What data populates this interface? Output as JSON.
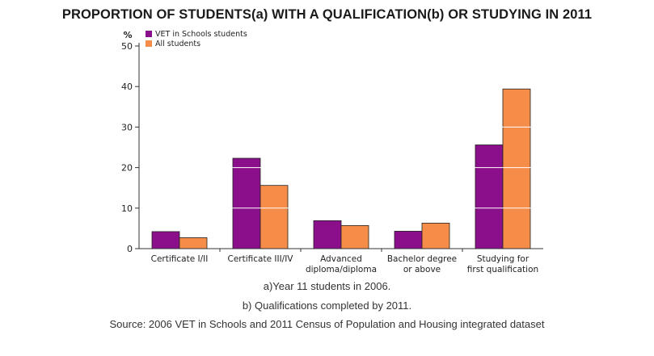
{
  "title": "PROPORTION OF STUDENTS(a) WITH A QUALIFICATION(b) OR STUDYING IN 2011",
  "notes": {
    "a": "a)Year 11 students in 2006.",
    "b": "b) Qualifications completed by 2011.",
    "source": "Source: 2006 VET in Schools and 2011 Census of Population and Housing integrated dataset"
  },
  "colors": {
    "vet": "#8b0f8b",
    "all": "#f58c48",
    "grid": "#ffffff",
    "axis": "#333333"
  },
  "chart_data": {
    "type": "bar",
    "title": "PROPORTION OF STUDENTS(a) WITH A QUALIFICATION(b) OR STUDYING IN 2011",
    "ylabel": "%",
    "xlabel": "",
    "ylim": [
      0,
      50
    ],
    "yticks": [
      0,
      10,
      20,
      30,
      40,
      50
    ],
    "grid": true,
    "legend_position": "top-left",
    "categories": [
      [
        "Certificate I/II"
      ],
      [
        "Certificate III/IV"
      ],
      [
        "Advanced",
        "diploma/diploma"
      ],
      [
        "Bachelor degree",
        "or above"
      ],
      [
        "Studying for",
        "first qualification"
      ]
    ],
    "series": [
      {
        "name": "VET in Schools students",
        "color": "#8b0f8b",
        "values": [
          4.2,
          22.3,
          6.9,
          4.3,
          25.6
        ]
      },
      {
        "name": "All students",
        "color": "#f58c48",
        "values": [
          2.7,
          15.6,
          5.7,
          6.3,
          39.4
        ]
      }
    ]
  }
}
